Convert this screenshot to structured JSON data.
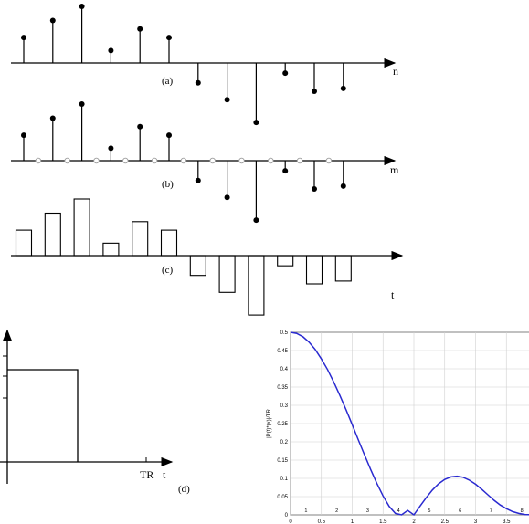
{
  "panel_a": {
    "tag": "(a)",
    "axis_label": "n",
    "values": [
      0.45,
      0.75,
      1.0,
      0.22,
      0.6,
      0.45,
      -0.35,
      -0.65,
      -1.05,
      -0.18,
      -0.5,
      -0.45
    ]
  },
  "panel_b": {
    "tag": "(b)",
    "axis_label": "m",
    "values": [
      0.45,
      0.75,
      1.0,
      0.22,
      0.6,
      0.45,
      -0.35,
      -0.65,
      -1.05,
      -0.18,
      -0.5,
      -0.45
    ]
  },
  "panel_c": {
    "tag": "(c)",
    "axis_label": "t",
    "values": [
      0.45,
      0.75,
      1.0,
      0.22,
      0.6,
      0.45,
      -0.35,
      -0.65,
      -1.05,
      -0.18,
      -0.5,
      -0.45
    ]
  },
  "panel_d": {
    "tag": "(d)",
    "t_label": "t",
    "tr_label": "TR"
  },
  "chart_data": {
    "type": "line",
    "title": "",
    "xlabel": "",
    "ylabel": "|P(t)*(x)|/TR",
    "xlim": [
      0,
      4
    ],
    "ylim": [
      0,
      0.5
    ],
    "x_ticks": [
      "0",
      "0.5",
      "1",
      "1.5",
      "2",
      "2.5",
      "3",
      "3.5",
      "4"
    ],
    "y_ticks": [
      "0",
      "0.05",
      "0.1",
      "0.15",
      "0.2",
      "0.25",
      "0.3",
      "0.35",
      "0.4",
      "0.45",
      "0.5"
    ],
    "band_labels": [
      "1",
      "2",
      "3",
      "4",
      "5",
      "6",
      "7",
      "8"
    ],
    "grid": true,
    "series": [
      {
        "color": "#2a2ad0",
        "x": [
          0,
          0.1,
          0.2,
          0.3,
          0.4,
          0.5,
          0.6,
          0.7,
          0.8,
          0.9,
          1.0,
          1.1,
          1.2,
          1.3,
          1.4,
          1.5,
          1.6,
          1.7,
          1.8,
          1.9,
          2.0,
          2.1,
          2.2,
          2.3,
          2.4,
          2.5,
          2.6,
          2.7,
          2.8,
          2.9,
          3.0,
          3.1,
          3.2,
          3.3,
          3.4,
          3.5,
          3.6,
          3.7,
          3.8,
          3.9,
          4.0
        ],
        "values": [
          0.5,
          0.497,
          0.488,
          0.473,
          0.453,
          0.427,
          0.398,
          0.364,
          0.327,
          0.288,
          0.247,
          0.205,
          0.164,
          0.124,
          0.086,
          0.052,
          0.023,
          0.004,
          0.0,
          0.012,
          0.0,
          0.024,
          0.047,
          0.068,
          0.085,
          0.097,
          0.104,
          0.106,
          0.103,
          0.095,
          0.084,
          0.07,
          0.055,
          0.04,
          0.027,
          0.017,
          0.009,
          0.004,
          0.001,
          0.0005,
          0.0
        ]
      }
    ]
  }
}
